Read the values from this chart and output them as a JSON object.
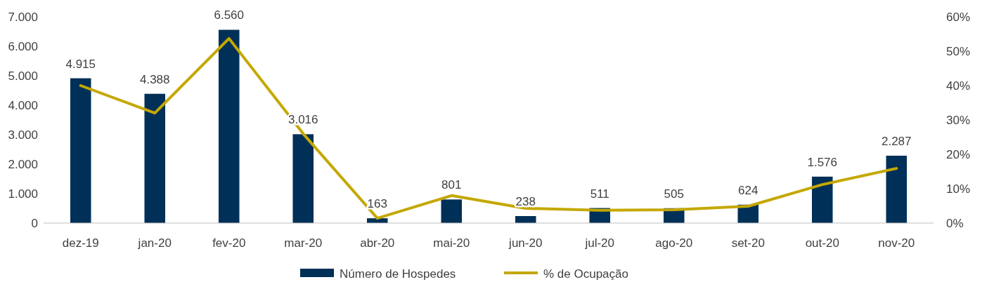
{
  "chart_data": {
    "type": "bar",
    "categories": [
      "dez-19",
      "jan-20",
      "fev-20",
      "mar-20",
      "abr-20",
      "mai-20",
      "jun-20",
      "jul-20",
      "ago-20",
      "set-20",
      "out-20",
      "nov-20"
    ],
    "series": [
      {
        "name": "Número de Hospedes",
        "color": "#003057",
        "values": [
          4915,
          4388,
          6560,
          3016,
          163,
          801,
          238,
          511,
          505,
          624,
          1576,
          2287
        ],
        "value_labels": [
          "4.915",
          "4.388",
          "6.560",
          "3.016",
          "163",
          "801",
          "238",
          "511",
          "505",
          "624",
          "1.576",
          "2.287"
        ]
      },
      {
        "name": "% de Ocupação",
        "type": "line",
        "axis": "y2",
        "color": "#c4a800",
        "values": [
          40,
          32,
          53.7,
          26,
          1.4,
          8,
          4.3,
          3.7,
          3.9,
          4.9,
          11.2,
          15.9
        ]
      }
    ],
    "ylim": [
      0,
      7000
    ],
    "yticks": [
      0,
      {
        "value": 1000,
        "label": "1.000"
      },
      {
        "value": 2000,
        "label": "2.000"
      },
      {
        "value": 3000,
        "label": "3.000"
      },
      {
        "value": 4000,
        "label": "4.000"
      },
      {
        "value": 5000,
        "label": "5.000"
      },
      {
        "value": 6000,
        "label": "6.000"
      },
      {
        "value": 7000,
        "label": "7.000"
      }
    ],
    "y2lim": [
      0,
      60
    ],
    "y2ticks": [
      {
        "value": 0,
        "label": "0%"
      },
      {
        "value": 10,
        "label": "10%"
      },
      {
        "value": 20,
        "label": "20%"
      },
      {
        "value": 30,
        "label": "30%"
      },
      {
        "value": 40,
        "label": "40%"
      },
      {
        "value": 50,
        "label": "50%"
      },
      {
        "value": 60,
        "label": "60%"
      }
    ],
    "legend": "bottom"
  }
}
